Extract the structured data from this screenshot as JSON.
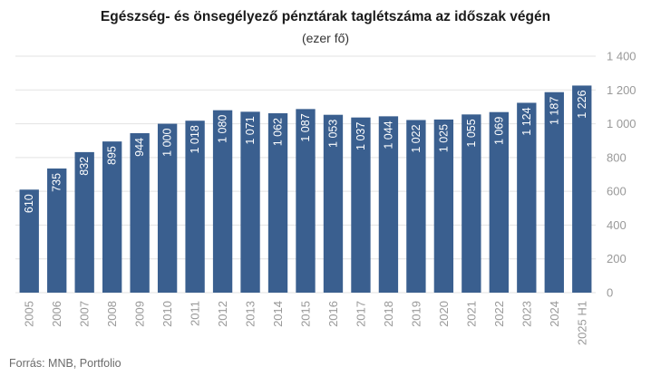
{
  "chart_data": {
    "type": "bar",
    "title": "Egészség- és önsegélyező pénztárak taglétszáma az időszak végén",
    "subtitle": "(ezer fő)",
    "categories": [
      "2005",
      "2006",
      "2007",
      "2008",
      "2009",
      "2010",
      "2011",
      "2012",
      "2013",
      "2014",
      "2015",
      "2016",
      "2017",
      "2018",
      "2019",
      "2020",
      "2021",
      "2022",
      "2023",
      "2024",
      "2025 H1"
    ],
    "values": [
      610,
      735,
      832,
      895,
      944,
      1000,
      1018,
      1080,
      1071,
      1062,
      1087,
      1053,
      1037,
      1044,
      1022,
      1025,
      1055,
      1069,
      1124,
      1187,
      1226
    ],
    "value_labels": [
      "610",
      "735",
      "832",
      "895",
      "944",
      "1 000",
      "1 018",
      "1 080",
      "1 071",
      "1 062",
      "1 087",
      "1 053",
      "1 037",
      "1 044",
      "1 022",
      "1 025",
      "1 055",
      "1 069",
      "1 124",
      "1 187",
      "1 226"
    ],
    "yticks": [
      0,
      200,
      400,
      600,
      800,
      1000,
      1200,
      1400
    ],
    "ytick_labels": [
      "0",
      "200",
      "400",
      "600",
      "800",
      "1 000",
      "1 200",
      "1 400"
    ],
    "ylim": [
      0,
      1400
    ],
    "yaxis_position": "right",
    "grid": true,
    "bar_color": "#3a5f8f",
    "label_color": "#ffffff",
    "grid_color": "#e3e3e3",
    "tick_color": "#999999"
  },
  "source": "Forrás: MNB, Portfolio"
}
